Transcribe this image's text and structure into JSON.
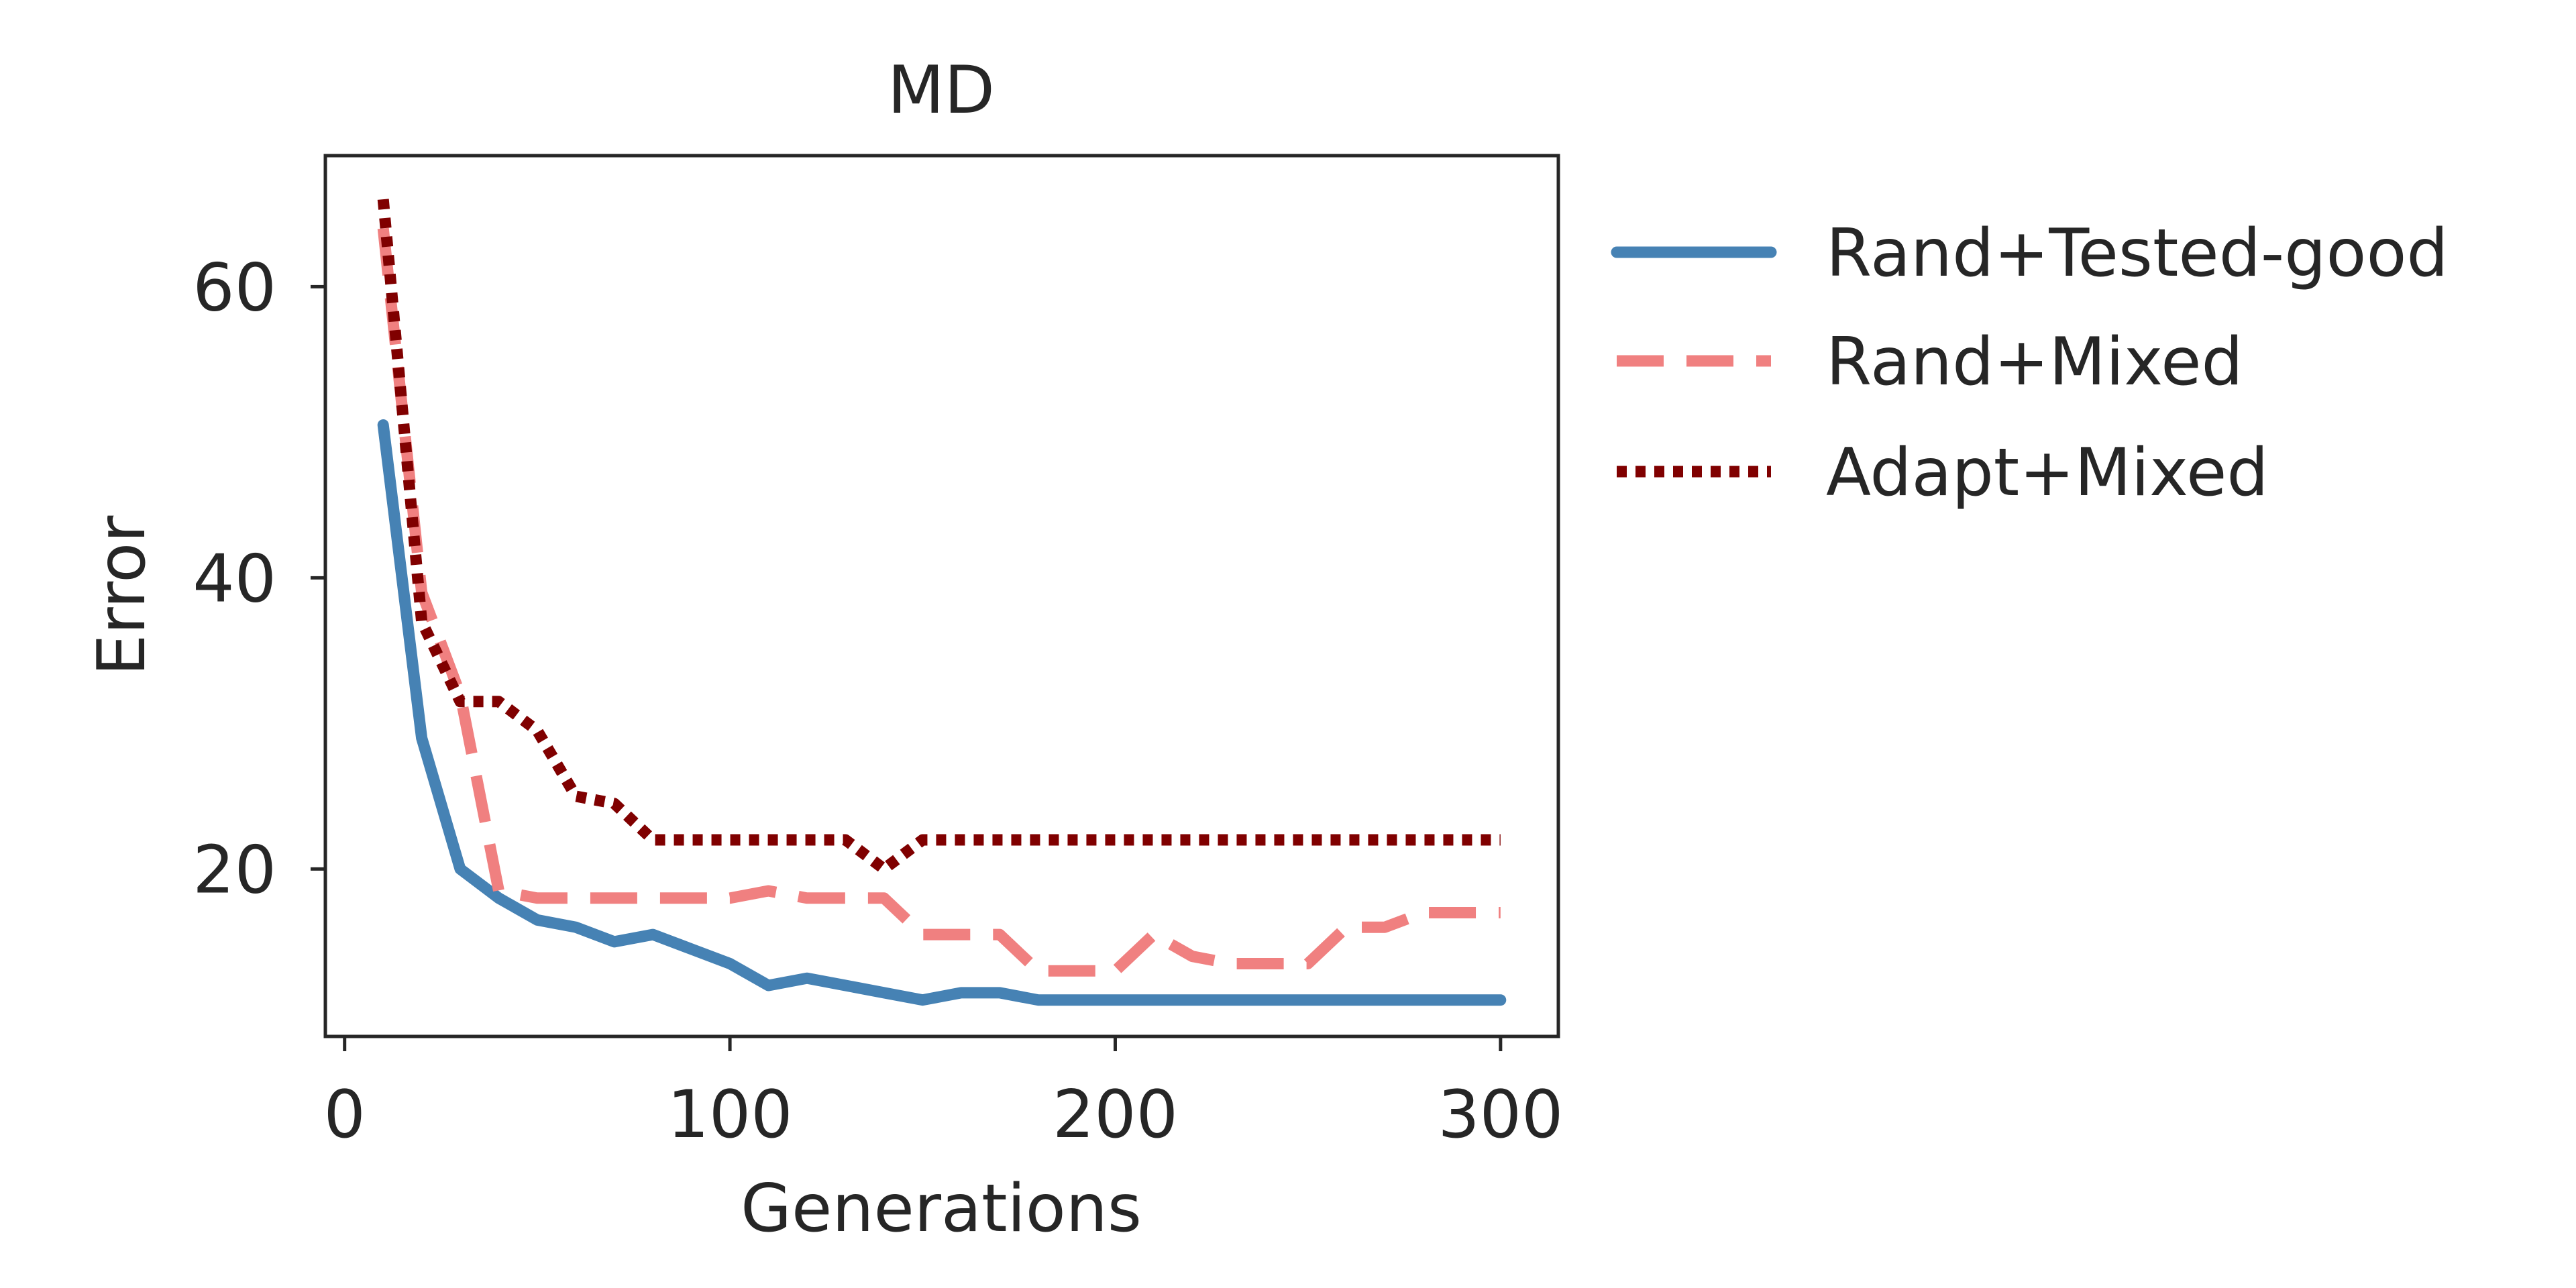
{
  "chart_data": {
    "type": "line",
    "title": "MD",
    "xlabel": "Generations",
    "ylabel": "Error",
    "xlim": [
      -5,
      315
    ],
    "ylim": [
      8.5,
      69
    ],
    "xticks": [
      0,
      100,
      200,
      300
    ],
    "yticks": [
      20,
      40,
      60
    ],
    "grid": false,
    "legend_position": "outside-right",
    "series": [
      {
        "name": "Rand+Tested-good",
        "color": "#4682b4",
        "style": "solid",
        "x": [
          10,
          20,
          30,
          40,
          50,
          60,
          70,
          80,
          90,
          100,
          110,
          120,
          130,
          140,
          150,
          160,
          170,
          180,
          190,
          200,
          210,
          220,
          230,
          240,
          250,
          260,
          270,
          280,
          290,
          300
        ],
        "y": [
          50.5,
          29,
          20,
          18,
          16.5,
          16,
          15,
          15.5,
          14.5,
          13.5,
          12,
          12.5,
          12,
          11.5,
          11,
          11.5,
          11.5,
          11,
          11,
          11,
          11,
          11,
          11,
          11,
          11,
          11,
          11,
          11,
          11,
          11
        ]
      },
      {
        "name": "Rand+Mixed",
        "color": "#f08080",
        "style": "dashed",
        "x": [
          10,
          20,
          30,
          40,
          50,
          60,
          70,
          80,
          90,
          100,
          110,
          120,
          130,
          140,
          150,
          160,
          170,
          180,
          190,
          200,
          210,
          220,
          230,
          240,
          250,
          260,
          270,
          280,
          290,
          300
        ],
        "y": [
          64,
          39,
          32,
          18.5,
          18,
          18,
          18,
          18,
          18,
          18,
          18.5,
          18,
          18,
          18,
          15.5,
          15.5,
          15.5,
          13,
          13,
          13,
          15.5,
          14,
          13.5,
          13.5,
          13.5,
          16,
          16,
          17,
          17,
          17
        ]
      },
      {
        "name": "Adapt+Mixed",
        "color": "#800000",
        "style": "dotted",
        "x": [
          10,
          20,
          30,
          40,
          50,
          60,
          70,
          80,
          90,
          100,
          110,
          120,
          130,
          140,
          150,
          160,
          170,
          180,
          190,
          200,
          210,
          220,
          230,
          240,
          250,
          260,
          270,
          280,
          290,
          300
        ],
        "y": [
          66,
          37,
          31.5,
          31.5,
          29.5,
          25,
          24.5,
          22,
          22,
          22,
          22,
          22,
          22,
          20,
          22,
          22,
          22,
          22,
          22,
          22,
          22,
          22,
          22,
          22,
          22,
          22,
          22,
          22,
          22,
          22
        ]
      }
    ]
  }
}
